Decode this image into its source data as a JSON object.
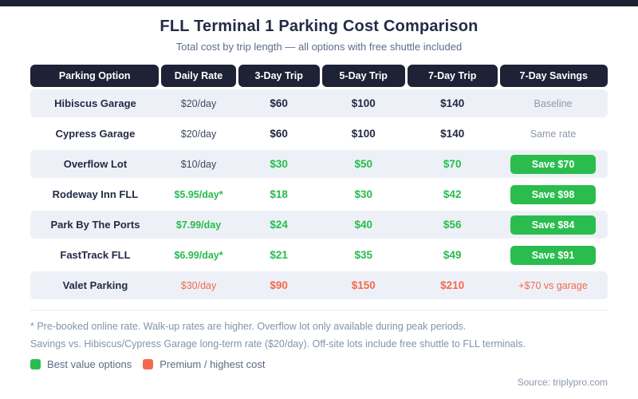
{
  "page": {
    "title": "FLL Terminal 1 Parking Cost Comparison",
    "subtitle": "Total cost by trip length — all options with free shuttle included",
    "source": "Source: triplypro.com"
  },
  "chart_data": {
    "type": "table",
    "title": "FLL Terminal 1 Parking Cost Comparison",
    "subtitle": "Total cost by trip length — all options with free shuttle included",
    "columns": [
      "Parking Option",
      "Daily Rate",
      "3-Day Trip",
      "5-Day Trip",
      "7-Day Trip",
      "7-Day Savings"
    ],
    "rows": [
      [
        "Hibiscus Garage",
        "$20/day",
        "$60",
        "$100",
        "$140",
        "Baseline"
      ],
      [
        "Cypress Garage",
        "$20/day",
        "$60",
        "$100",
        "$140",
        "Same rate"
      ],
      [
        "Overflow Lot",
        "$10/day",
        "$30",
        "$50",
        "$70",
        "Save $70"
      ],
      [
        "Rodeway Inn FLL",
        "$5.95/day*",
        "$18",
        "$30",
        "$42",
        "Save $98"
      ],
      [
        "Park By The Ports",
        "$7.99/day",
        "$24",
        "$40",
        "$56",
        "Save $84"
      ],
      [
        "FastTrack FLL",
        "$6.99/day*",
        "$21",
        "$35",
        "$49",
        "Save $91"
      ],
      [
        "Valet Parking",
        "$30/day",
        "$90",
        "$150",
        "$210",
        "+$70 vs garage"
      ]
    ]
  },
  "table": {
    "row_meta": [
      {
        "daily": "dark",
        "values": "dark",
        "savings": "muted"
      },
      {
        "daily": "dark",
        "values": "dark",
        "savings": "muted"
      },
      {
        "daily": "dark",
        "values": "green",
        "savings": "badge"
      },
      {
        "daily": "green",
        "values": "green",
        "savings": "badge"
      },
      {
        "daily": "green",
        "values": "green",
        "savings": "badge"
      },
      {
        "daily": "green",
        "values": "green",
        "savings": "badge"
      },
      {
        "daily": "red",
        "values": "red",
        "savings": "red"
      }
    ]
  },
  "footnotes": [
    "* Pre-booked online rate. Walk-up rates are higher. Overflow lot only available during peak periods.",
    "Savings vs. Hibiscus/Cypress Garage long-term rate ($20/day). Off-site lots include free shuttle to FLL terminals."
  ],
  "legend": {
    "items": [
      {
        "label": "Best value options",
        "color": "#2abd4e"
      },
      {
        "label": "Premium / highest cost",
        "color": "#f4694c"
      }
    ]
  },
  "colors": {
    "navy": "#1c2134",
    "header_bg": "#1d2236",
    "row_alt_bg": "#edf1f7",
    "green": "#2abd4e",
    "red": "#f4694c",
    "muted_text": "#8d99ac"
  }
}
